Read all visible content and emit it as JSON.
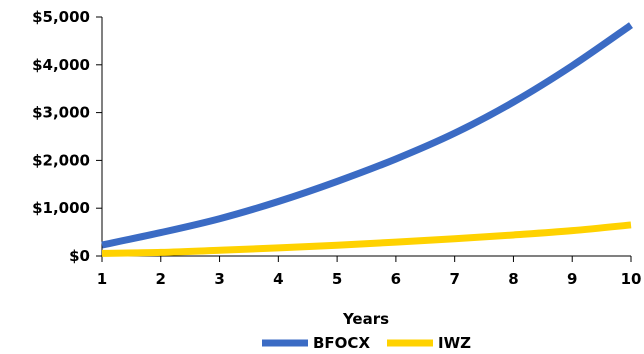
{
  "chart_data": {
    "type": "line",
    "xlabel": "Years",
    "ylabel": "",
    "title": "",
    "x": [
      1,
      2,
      3,
      4,
      5,
      6,
      7,
      8,
      9,
      10
    ],
    "xlim": [
      1,
      10
    ],
    "ylim": [
      0,
      5000
    ],
    "x_ticks": [
      "1",
      "2",
      "3",
      "4",
      "5",
      "6",
      "7",
      "8",
      "9",
      "10"
    ],
    "y_ticks": [
      {
        "value": 0,
        "label": "$0"
      },
      {
        "value": 1000,
        "label": "$1,000"
      },
      {
        "value": 2000,
        "label": "$2,000"
      },
      {
        "value": 3000,
        "label": "$3,000"
      },
      {
        "value": 4000,
        "label": "$4,000"
      },
      {
        "value": 5000,
        "label": "$5,000"
      }
    ],
    "grid": false,
    "legend_position": "bottom",
    "series": [
      {
        "name": "BFOCX",
        "color": "#3b6bc4",
        "values": [
          230,
          490,
          780,
          1140,
          1560,
          2030,
          2570,
          3220,
          3980,
          4830
        ]
      },
      {
        "name": "IWZ",
        "color": "#ffd200",
        "values": [
          55,
          75,
          120,
          170,
          225,
          290,
          360,
          440,
          530,
          650
        ]
      }
    ]
  }
}
